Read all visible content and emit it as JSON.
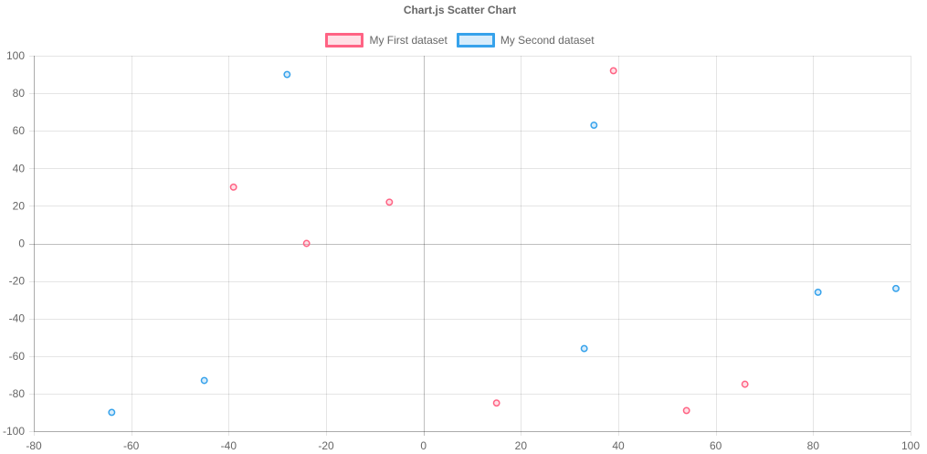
{
  "chart_data": {
    "type": "scatter",
    "title": "Chart.js Scatter Chart",
    "xlim": [
      -80,
      100
    ],
    "ylim": [
      -100,
      100
    ],
    "x_ticks": [
      -80,
      -60,
      -40,
      -20,
      0,
      20,
      40,
      60,
      80,
      100
    ],
    "y_ticks": [
      100,
      80,
      60,
      40,
      20,
      0,
      -20,
      -40,
      -60,
      -80,
      -100
    ],
    "grid": true,
    "legend_position": "top",
    "series": [
      {
        "name": "My First dataset",
        "border_color": "#ff6384",
        "fill_color": "rgba(255,99,132,0.2)",
        "points": [
          {
            "x": -39,
            "y": 30
          },
          {
            "x": -24,
            "y": 0
          },
          {
            "x": -7,
            "y": 22
          },
          {
            "x": 39,
            "y": 92
          },
          {
            "x": 15,
            "y": -85
          },
          {
            "x": 54,
            "y": -89
          },
          {
            "x": 66,
            "y": -75
          }
        ]
      },
      {
        "name": "My Second dataset",
        "border_color": "#36a2eb",
        "fill_color": "rgba(54,162,235,0.2)",
        "points": [
          {
            "x": -28,
            "y": 90
          },
          {
            "x": 35,
            "y": 63
          },
          {
            "x": 81,
            "y": -26
          },
          {
            "x": 97,
            "y": -24
          },
          {
            "x": 33,
            "y": -56
          },
          {
            "x": -45,
            "y": -73
          },
          {
            "x": -64,
            "y": -90
          }
        ]
      }
    ]
  }
}
